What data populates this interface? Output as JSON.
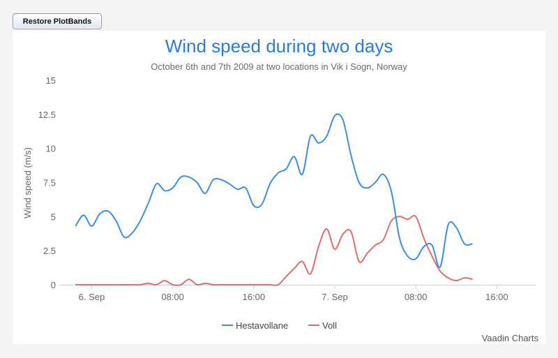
{
  "toolbar": {
    "restore_label": "Restore PlotBands"
  },
  "credits": "Vaadin Charts",
  "colors": {
    "Hestavollane": "#3b8ee0",
    "Voll": "#e06b6b",
    "title": "#2a7bd8"
  },
  "chart_data": {
    "type": "line",
    "title": "Wind speed during two days",
    "subtitle": "October 6th and 7th 2009 at two locations in Vik i Sogn, Norway",
    "ylabel": "Wind speed (m/s)",
    "xlabel": "",
    "ylim": [
      0,
      15
    ],
    "y_ticks": [
      "0",
      "2.5",
      "5",
      "7.5",
      "10",
      "12.5",
      "15"
    ],
    "x_range": [
      -2,
      58
    ],
    "x_ticks": [
      {
        "x": 2,
        "label": "6. Sep"
      },
      {
        "x": 12,
        "label": "08:00"
      },
      {
        "x": 22,
        "label": "16:00"
      },
      {
        "x": 32,
        "label": "7. Sep"
      },
      {
        "x": 42,
        "label": "08:00"
      },
      {
        "x": 52,
        "label": "16:00"
      }
    ],
    "grid": false,
    "legend": "bottom-center",
    "series": [
      {
        "name": "Hestavollane",
        "values": [
          4.3,
          5.1,
          4.3,
          5.2,
          5.4,
          4.7,
          3.5,
          3.8,
          4.7,
          6.0,
          7.4,
          6.9,
          7.1,
          7.9,
          7.9,
          7.5,
          6.7,
          7.7,
          7.7,
          7.4,
          7.0,
          7.1,
          5.8,
          5.9,
          7.4,
          8.2,
          8.5,
          9.4,
          8.1,
          10.9,
          10.4,
          10.9,
          12.4,
          12.1,
          9.5,
          7.5,
          7.1,
          7.5,
          8.1,
          6.8,
          3.4,
          2.1,
          1.9,
          2.8,
          2.9,
          1.3,
          4.4,
          4.2,
          3.0,
          3.0
        ]
      },
      {
        "name": "Voll",
        "values": [
          0.0,
          0.0,
          0.0,
          0.0,
          0.0,
          0.0,
          0.0,
          0.0,
          0.0,
          0.1,
          0.0,
          0.3,
          0.0,
          0.0,
          0.4,
          0.0,
          0.1,
          0.0,
          0.0,
          0.0,
          0.0,
          0.0,
          0.0,
          0.0,
          0.0,
          0.0,
          0.6,
          1.2,
          1.7,
          0.8,
          2.8,
          4.1,
          2.6,
          3.7,
          3.9,
          1.7,
          2.3,
          2.9,
          3.3,
          4.7,
          5.0,
          4.8,
          5.0,
          3.4,
          2.1,
          1.0,
          0.5,
          0.3,
          0.5,
          0.4
        ]
      }
    ]
  }
}
